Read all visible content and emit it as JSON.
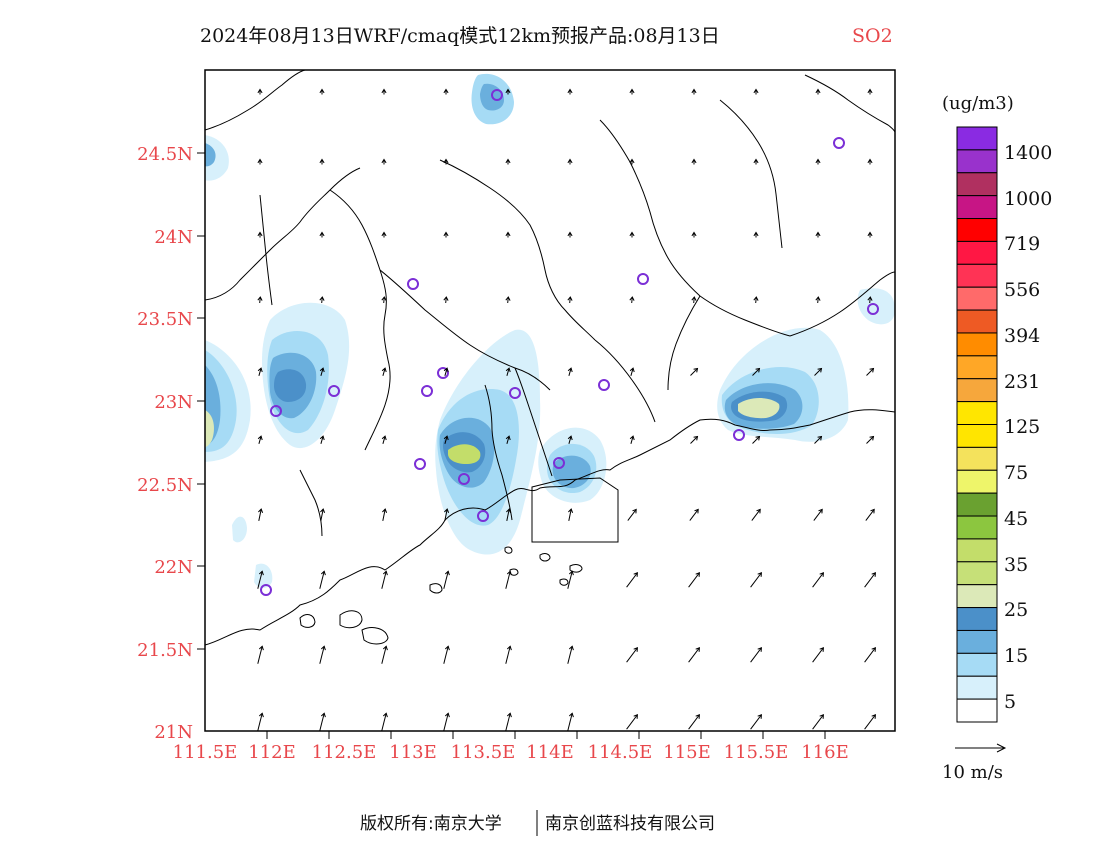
{
  "header": {
    "title": "2024年08月13日WRF/cmaq模式12km预报产品:08月13日",
    "pollutant": "SO2"
  },
  "map": {
    "lat_ticks": [
      "24.5N",
      "24N",
      "23.5N",
      "23N",
      "22.5N",
      "22N",
      "21.5N",
      "21N"
    ],
    "lon_ticks": [
      "111.5E",
      "112E",
      "112.5E",
      "113E",
      "113.5E",
      "114E",
      "114.5E",
      "115E",
      "115.5E",
      "116E"
    ],
    "background_color": "#ffffff",
    "border_color": "#000000",
    "wind_arrow_color": "#000000",
    "station_marker_color": "#7b2fd6"
  },
  "legend": {
    "unit": "(ug/m3)",
    "labels": [
      "1400",
      "1000",
      "719",
      "556",
      "394",
      "231",
      "125",
      "75",
      "45",
      "35",
      "25",
      "15",
      "5"
    ],
    "colors_top_to_bottom": [
      "#8a2be2",
      "#9932cc",
      "#b03060",
      "#c71585",
      "#ff0000",
      "#ff1744",
      "#ff3355",
      "#ff6a6a",
      "#ee5a24",
      "#ff8c00",
      "#ffa726",
      "#f6a73c",
      "#ffe600",
      "#ffe500",
      "#f4e25c",
      "#eef56a",
      "#6aa130",
      "#8cc63f",
      "#c3dd6a",
      "#c6e078",
      "#dce9b8",
      "#4b90c9",
      "#6aafdd",
      "#a6dbf5",
      "#d7f0fb",
      "#ffffff"
    ]
  },
  "wind_scale": {
    "label": "10 m/s"
  },
  "footer": {
    "left": "版权所有:南京大学",
    "right": "南京创蓝科技有限公司"
  }
}
